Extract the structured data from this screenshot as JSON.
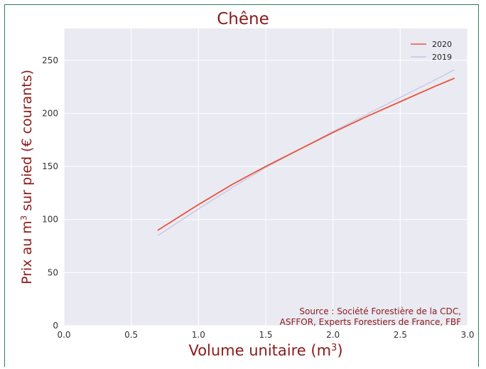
{
  "chart_data": {
    "type": "line",
    "title": "Chêne",
    "xlabel": "Volume unitaire (m",
    "xlabel_sup": "3",
    "xlabel_end": ")",
    "ylabel": "Prix au m",
    "ylabel_sup": "3",
    "ylabel_end": " sur pied (€ courants)",
    "xlim": [
      0.0,
      3.0
    ],
    "ylim": [
      0,
      280
    ],
    "x_ticks": [
      "0.0",
      "0.5",
      "1.0",
      "1.5",
      "2.0",
      "2.5",
      "3.0"
    ],
    "y_ticks": [
      "0",
      "50",
      "100",
      "150",
      "200",
      "250"
    ],
    "grid": true,
    "legend_position": "top-right",
    "source_line1": "Source : Société Forestière de la CDC,",
    "source_line2": "ASFFOR, Experts Forestiers de France, FBF",
    "series": [
      {
        "name": "2020",
        "color": "#e8543a",
        "x": [
          0.7,
          1.0,
          1.25,
          1.5,
          1.75,
          2.0,
          2.25,
          2.5,
          2.75,
          2.9
        ],
        "y": [
          90,
          114,
          133,
          150,
          166,
          182,
          197,
          211,
          225,
          233
        ]
      },
      {
        "name": "2019",
        "color": "#c9c3e6",
        "x": [
          0.7,
          1.0,
          1.25,
          1.5,
          1.75,
          2.0,
          2.25,
          2.5,
          2.75,
          2.9
        ],
        "y": [
          85,
          110,
          130,
          149,
          166,
          183,
          199,
          215,
          231,
          241
        ]
      }
    ]
  }
}
